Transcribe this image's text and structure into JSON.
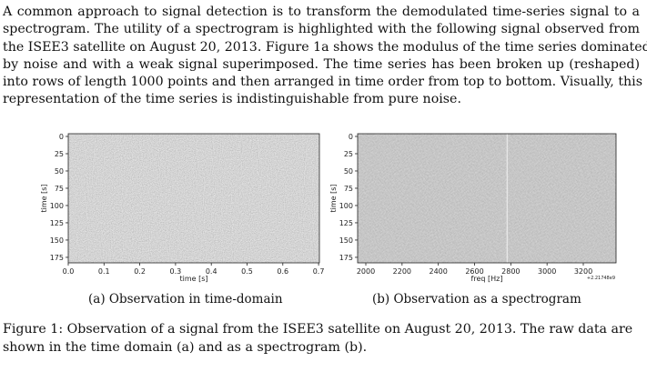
{
  "paragraph": {
    "lines": [
      "A common approach to signal detection is to transform the demodulated time-series signal to a",
      "spectrogram.  The utility of a spectrogram is highlighted with the following signal observed from",
      "the ISEE3 satellite on August 20, 2013. Figure 1a shows the modulus of the time series dominated",
      "by noise and with a weak signal superimposed.  The time series has been broken up (reshaped)",
      "into rows of length 1000 points and then arranged in time order from top to bottom. Visually, this",
      "representation of the time series is indistinguishable from pure noise."
    ]
  },
  "figure": {
    "caption_lines": [
      "Figure 1: Observation of a signal from the ISEE3 satellite on August 20, 2013.  The raw data are",
      "shown in the time domain (a) and as a spectrogram (b)."
    ],
    "panel_a": {
      "subcaption": "(a) Observation in time-domain",
      "xlabel": "time [s]",
      "ylabel": "time [s]",
      "xticks": [
        "0.0",
        "0.1",
        "0.2",
        "0.3",
        "0.4",
        "0.5",
        "0.6",
        "0.7"
      ],
      "yticks": [
        "0",
        "25",
        "50",
        "75",
        "100",
        "125",
        "150",
        "175"
      ],
      "image_colors": {
        "background": "#c4c4c4",
        "noise_dark": "#8e8e8e",
        "noise_light": "#f2f2f2"
      }
    },
    "panel_b": {
      "subcaption": "(b) Observation as a spectrogram",
      "xlabel": "freq [Hz]",
      "ylabel": "time [s]",
      "xticks": [
        "2000",
        "2200",
        "2400",
        "2600",
        "2800",
        "3000",
        "3200"
      ],
      "offset_text": "+2.21748e9",
      "yticks": [
        "0",
        "25",
        "50",
        "75",
        "100",
        "125",
        "150",
        "175"
      ],
      "signal_line_freq_hz": 2780,
      "image_colors": {
        "background": "#b9b9b9",
        "noise_dark": "#808080",
        "noise_light": "#e6e6e6",
        "signal": "#ececec"
      }
    }
  }
}
